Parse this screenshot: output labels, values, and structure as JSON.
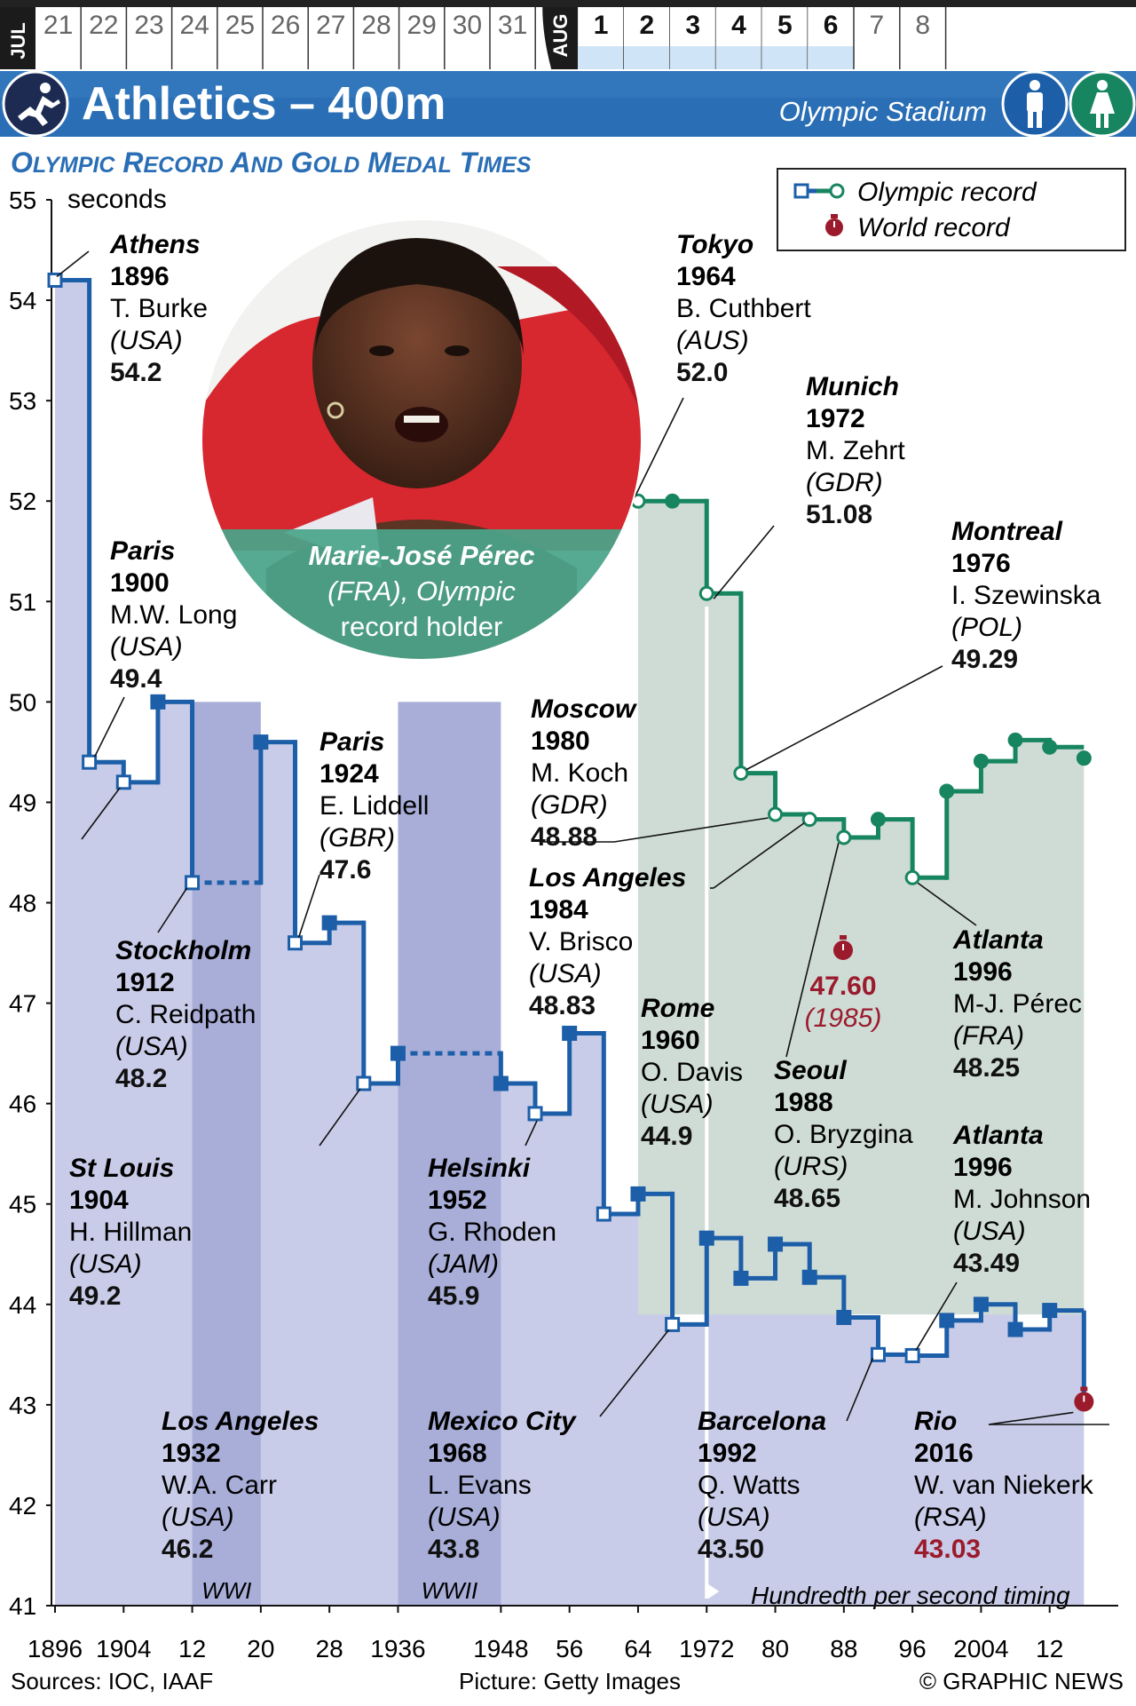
{
  "calendar": {
    "months": [
      "JUL",
      "AUG"
    ],
    "jul_days": [
      "21",
      "22",
      "23",
      "24",
      "25",
      "26",
      "27",
      "28",
      "29",
      "30",
      "31"
    ],
    "aug_days": [
      "1",
      "2",
      "3",
      "4",
      "5",
      "6",
      "7",
      "8"
    ],
    "active_aug_days": [
      "1",
      "2",
      "3",
      "4",
      "5",
      "6"
    ]
  },
  "header": {
    "sport_icon": "athletics-runner-icon",
    "title": "Athletics – 400m",
    "venue": "Olympic Stadium",
    "icons": [
      "men-icon",
      "women-icon"
    ],
    "colors": {
      "banner": "#2a6eb5",
      "men": "#1c5ea8",
      "women": "#17855f"
    }
  },
  "subtitle": "Olympic Record and Gold Medal Times",
  "legend": {
    "olympic_record": "Olympic record",
    "world_record": "World record"
  },
  "photo": {
    "caption_name": "Marie-José Pérec",
    "caption_rest": "(FRA), Olympic",
    "caption_line3": "record holder"
  },
  "footer": {
    "sources": "Sources: IOC, IAAF",
    "picture": "Picture: Getty Images",
    "credit": "© GRAPHIC NEWS"
  },
  "chart_data": {
    "type": "line",
    "title": "Olympic Record and Gold Medal Times",
    "ylabel": "seconds",
    "ylim": [
      41,
      55
    ],
    "xlim": [
      1896,
      2020
    ],
    "y_ticks": [
      "55",
      "54",
      "53",
      "52",
      "51",
      "50",
      "49",
      "48",
      "47",
      "46",
      "45",
      "44",
      "43",
      "42",
      "41"
    ],
    "x_ticks": [
      {
        "value": 1896,
        "label": "1896"
      },
      {
        "value": 1904,
        "label": "1904"
      },
      {
        "value": 1912,
        "label": "12"
      },
      {
        "value": 1920,
        "label": "20"
      },
      {
        "value": 1928,
        "label": "28"
      },
      {
        "value": 1936,
        "label": "1936"
      },
      {
        "value": 1948,
        "label": "1948"
      },
      {
        "value": 1956,
        "label": "56"
      },
      {
        "value": 1964,
        "label": "64"
      },
      {
        "value": 1972,
        "label": "1972"
      },
      {
        "value": 1980,
        "label": "80"
      },
      {
        "value": 1988,
        "label": "88"
      },
      {
        "value": 1996,
        "label": "96"
      },
      {
        "value": 2004,
        "label": "2004"
      },
      {
        "value": 2012,
        "label": "12"
      }
    ],
    "bands": [
      {
        "label": "WWI",
        "from": 1912,
        "to": 1920
      },
      {
        "label": "WWII",
        "from": 1936,
        "to": 1948
      }
    ],
    "timing_note": "Hundredth per second timing",
    "timing_from": 1972,
    "series": [
      {
        "name": "Men",
        "color": "#1c5ea8",
        "fill": "#c9cce8",
        "points": [
          {
            "x": 1896,
            "y": 54.2,
            "record": true
          },
          {
            "x": 1900,
            "y": 49.4,
            "record": true
          },
          {
            "x": 1904,
            "y": 49.2,
            "record": true
          },
          {
            "x": 1908,
            "y": 50.0,
            "record": false
          },
          {
            "x": 1912,
            "y": 48.2,
            "record": true
          },
          {
            "x": 1920,
            "y": 49.6,
            "record": false
          },
          {
            "x": 1924,
            "y": 47.6,
            "record": true
          },
          {
            "x": 1928,
            "y": 47.8,
            "record": false
          },
          {
            "x": 1932,
            "y": 46.2,
            "record": true
          },
          {
            "x": 1936,
            "y": 46.5,
            "record": false
          },
          {
            "x": 1948,
            "y": 46.2,
            "record": false
          },
          {
            "x": 1952,
            "y": 45.9,
            "record": true
          },
          {
            "x": 1956,
            "y": 46.7,
            "record": false
          },
          {
            "x": 1960,
            "y": 44.9,
            "record": true
          },
          {
            "x": 1964,
            "y": 45.1,
            "record": false
          },
          {
            "x": 1968,
            "y": 43.8,
            "record": true
          },
          {
            "x": 1972,
            "y": 44.66,
            "record": false
          },
          {
            "x": 1976,
            "y": 44.26,
            "record": false
          },
          {
            "x": 1980,
            "y": 44.6,
            "record": false
          },
          {
            "x": 1984,
            "y": 44.27,
            "record": false
          },
          {
            "x": 1988,
            "y": 43.87,
            "record": false
          },
          {
            "x": 1992,
            "y": 43.5,
            "record": true
          },
          {
            "x": 1996,
            "y": 43.49,
            "record": true
          },
          {
            "x": 2000,
            "y": 43.84,
            "record": false
          },
          {
            "x": 2004,
            "y": 44.0,
            "record": false
          },
          {
            "x": 2008,
            "y": 43.75,
            "record": false
          },
          {
            "x": 2012,
            "y": 43.94,
            "record": false
          },
          {
            "x": 2016,
            "y": 43.03,
            "record": true,
            "world_record": true
          }
        ]
      },
      {
        "name": "Women",
        "color": "#17855f",
        "fill": "#cfdcd6",
        "points": [
          {
            "x": 1964,
            "y": 52.0,
            "record": true
          },
          {
            "x": 1968,
            "y": 52.0,
            "record": false
          },
          {
            "x": 1972,
            "y": 51.08,
            "record": true
          },
          {
            "x": 1976,
            "y": 49.29,
            "record": true
          },
          {
            "x": 1980,
            "y": 48.88,
            "record": true
          },
          {
            "x": 1984,
            "y": 48.83,
            "record": true
          },
          {
            "x": 1988,
            "y": 48.65,
            "record": true
          },
          {
            "x": 1992,
            "y": 48.83,
            "record": false
          },
          {
            "x": 1996,
            "y": 48.25,
            "record": true
          },
          {
            "x": 2000,
            "y": 49.11,
            "record": false
          },
          {
            "x": 2004,
            "y": 49.41,
            "record": false
          },
          {
            "x": 2008,
            "y": 49.62,
            "record": false
          },
          {
            "x": 2012,
            "y": 49.55,
            "record": false
          },
          {
            "x": 2016,
            "y": 49.44,
            "record": false
          }
        ]
      }
    ],
    "world_record_women": {
      "value": "47.60",
      "year": "(1985)"
    },
    "annotations": [
      {
        "city": "Athens",
        "year": "1896",
        "name": "T. Burke",
        "nation": "(USA)",
        "time": "54.2"
      },
      {
        "city": "Paris",
        "year": "1900",
        "name": "M.W. Long",
        "nation": "(USA)",
        "time": "49.4"
      },
      {
        "city": "St Louis",
        "year": "1904",
        "name": "H. Hillman",
        "nation": "(USA)",
        "time": "49.2"
      },
      {
        "city": "Stockholm",
        "year": "1912",
        "name": "C. Reidpath",
        "nation": "(USA)",
        "time": "48.2"
      },
      {
        "city": "Paris",
        "year": "1924",
        "name": "E. Liddell",
        "nation": "(GBR)",
        "time": "47.6"
      },
      {
        "city": "Los Angeles",
        "year": "1932",
        "name": "W.A. Carr",
        "nation": "(USA)",
        "time": "46.2"
      },
      {
        "city": "Helsinki",
        "year": "1952",
        "name": "G. Rhoden",
        "nation": "(JAM)",
        "time": "45.9"
      },
      {
        "city": "Mexico City",
        "year": "1968",
        "name": "L. Evans",
        "nation": "(USA)",
        "time": "43.8"
      },
      {
        "city": "Rome",
        "year": "1960",
        "name": "O. Davis",
        "nation": "(USA)",
        "time": "44.9"
      },
      {
        "city": "Tokyo",
        "year": "1964",
        "name": "B. Cuthbert",
        "nation": "(AUS)",
        "time": "52.0"
      },
      {
        "city": "Munich",
        "year": "1972",
        "name": "M. Zehrt",
        "nation": "(GDR)",
        "time": "51.08"
      },
      {
        "city": "Montreal",
        "year": "1976",
        "name": "I. Szewinska",
        "nation": "(POL)",
        "time": "49.29"
      },
      {
        "city": "Moscow",
        "year": "1980",
        "name": "M. Koch",
        "nation": "(GDR)",
        "time": "48.88"
      },
      {
        "city": "Los Angeles",
        "year": "1984",
        "name": "V. Brisco",
        "nation": "(USA)",
        "time": "48.83"
      },
      {
        "city": "Seoul",
        "year": "1988",
        "name": "O. Bryzgina",
        "nation": "(URS)",
        "time": "48.65"
      },
      {
        "city": "Atlanta",
        "year": "1996",
        "name": "M-J. Pérec",
        "nation": "(FRA)",
        "time": "48.25"
      },
      {
        "city": "Atlanta",
        "year": "1996",
        "name": "M. Johnson",
        "nation": "(USA)",
        "time": "43.49"
      },
      {
        "city": "Barcelona",
        "year": "1992",
        "name": "Q. Watts",
        "nation": "(USA)",
        "time": "43.50"
      },
      {
        "city": "Rio",
        "year": "2016",
        "name": "W. van Niekerk",
        "nation": "(RSA)",
        "time": "43.03"
      }
    ]
  }
}
